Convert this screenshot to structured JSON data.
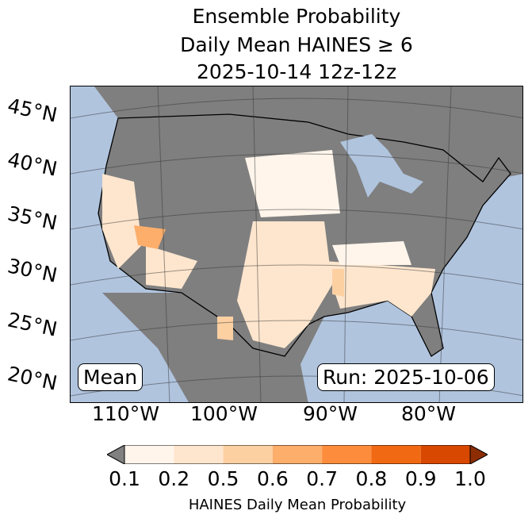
{
  "title": {
    "line1": "Ensemble Probability",
    "line2": "Daily Mean HAINES ≥ 6",
    "line3": "2025-10-14 12z-12z"
  },
  "lat_labels": [
    "45°N",
    "40°N",
    "35°N",
    "30°N",
    "25°N",
    "20°N"
  ],
  "lon_labels": [
    "110°W",
    "100°W",
    "90°W",
    "80°W"
  ],
  "mean_label": "Mean",
  "run_label": "Run: 2025-10-06",
  "colorbar": {
    "ticks": [
      "0.1",
      "0.2",
      "0.5",
      "0.6",
      "0.7",
      "0.8",
      "0.9",
      "1.0"
    ],
    "colors": [
      "#fff5eb",
      "#fee6ce",
      "#fdd0a2",
      "#fdae6b",
      "#fd8d3c",
      "#f16913",
      "#d94801"
    ],
    "under_color": "#808080",
    "over_color": "#8c2d04",
    "label": "HAINES Daily Mean Probability"
  },
  "colors": {
    "ocean": "#b0c4de",
    "land_low": "#7f7f7f"
  }
}
